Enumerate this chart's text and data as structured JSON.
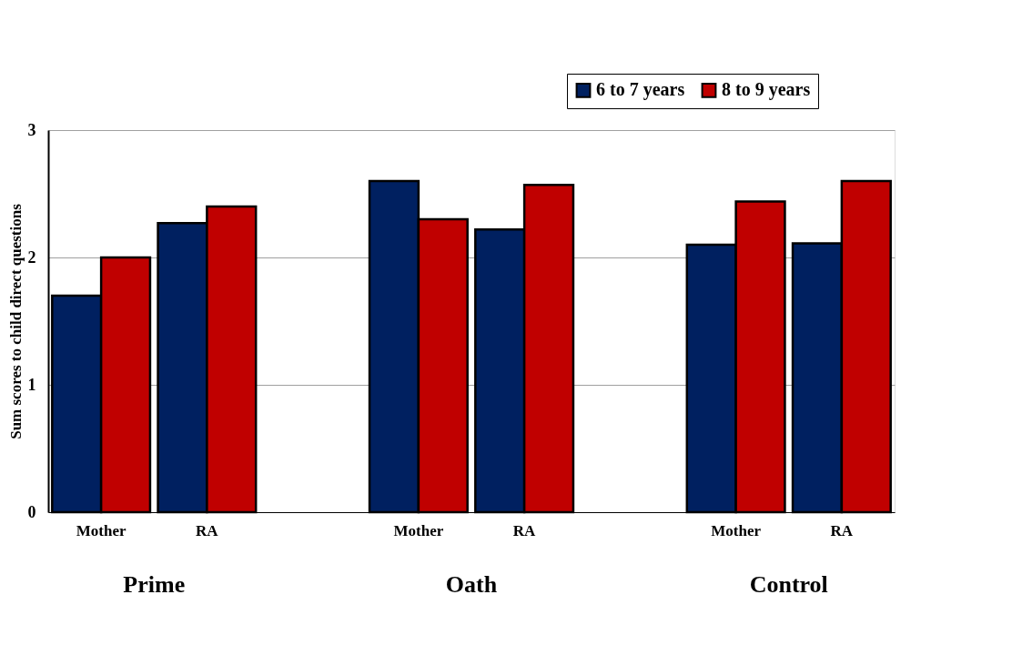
{
  "chart_data": {
    "type": "bar",
    "ylabel": "Sum scores to child direct questions",
    "categories": [
      "Mother",
      "RA",
      null,
      "Mother",
      "RA",
      null,
      "Mother",
      "RA"
    ],
    "series": [
      {
        "name": "6 to 7 years",
        "color": "#002060",
        "values": [
          1.7,
          2.27,
          null,
          2.6,
          2.22,
          null,
          2.1,
          2.11
        ]
      },
      {
        "name": "8 to 9 years",
        "color": "#c00000",
        "values": [
          2.0,
          2.4,
          null,
          2.3,
          2.57,
          null,
          2.44,
          2.6
        ]
      }
    ],
    "annotations": [
      "Prime",
      "Oath",
      "Control"
    ],
    "ylim": [
      0,
      3
    ],
    "yticks": [
      0,
      1,
      2,
      3
    ],
    "grid": "y",
    "legend": "top right"
  }
}
